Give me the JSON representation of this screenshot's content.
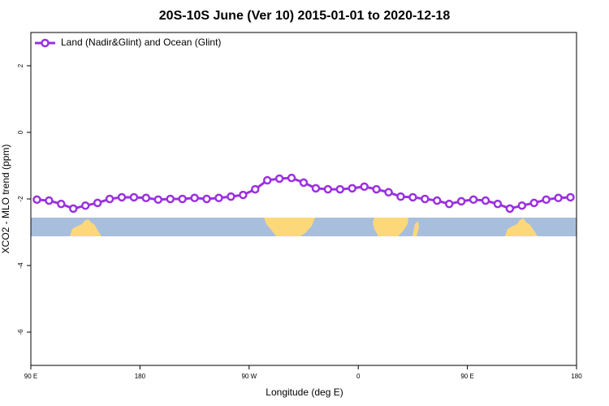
{
  "chart_data": {
    "type": "line",
    "title": "20S-10S June (Ver 10)   2015-01-01 to 2020-12-18",
    "xlabel": "Longitude (deg E)",
    "ylabel": "XCO2 - MLO trend (ppm)",
    "x": [
      95,
      105,
      115,
      125,
      135,
      145,
      155,
      165,
      175,
      185,
      195,
      205,
      215,
      225,
      235,
      245,
      255,
      265,
      275,
      285,
      295,
      305,
      315,
      325,
      335,
      345,
      355,
      365,
      375,
      385,
      395,
      405,
      415,
      425,
      435,
      445,
      455,
      465,
      475,
      485,
      495,
      505,
      515,
      525,
      535
    ],
    "series": [
      {
        "name": "Land (Nadir&Glint) and Ocean (Glint)",
        "color": "#9b30e0",
        "values": [
          -2.02,
          -2.05,
          -2.15,
          -2.29,
          -2.2,
          -2.12,
          -2.0,
          -1.95,
          -1.95,
          -1.97,
          -2.02,
          -2.0,
          -2.0,
          -1.97,
          -2.0,
          -1.97,
          -1.93,
          -1.88,
          -1.71,
          -1.44,
          -1.39,
          -1.37,
          -1.51,
          -1.68,
          -1.71,
          -1.71,
          -1.68,
          -1.63,
          -1.71,
          -1.8,
          -1.93,
          -1.95,
          -2.0,
          -2.05,
          -2.15,
          -2.07,
          -2.02,
          -2.05,
          -2.15,
          -2.29,
          -2.2,
          -2.12,
          -2.02,
          -1.97,
          -1.95
        ]
      }
    ],
    "xlim": [
      90,
      540
    ],
    "xticks": [
      {
        "value": 90,
        "label": "90 E"
      },
      180,
      {
        "value": 270,
        "label": "90 W"
      },
      {
        "value": 360,
        "label": "0"
      },
      {
        "value": 450,
        "label": "90 E"
      },
      {
        "value": 540,
        "label": "180"
      }
    ],
    "ylim": [
      -7,
      3
    ],
    "yticks": [
      -6,
      -4,
      -2,
      0,
      2
    ],
    "legend": "top-left"
  }
}
